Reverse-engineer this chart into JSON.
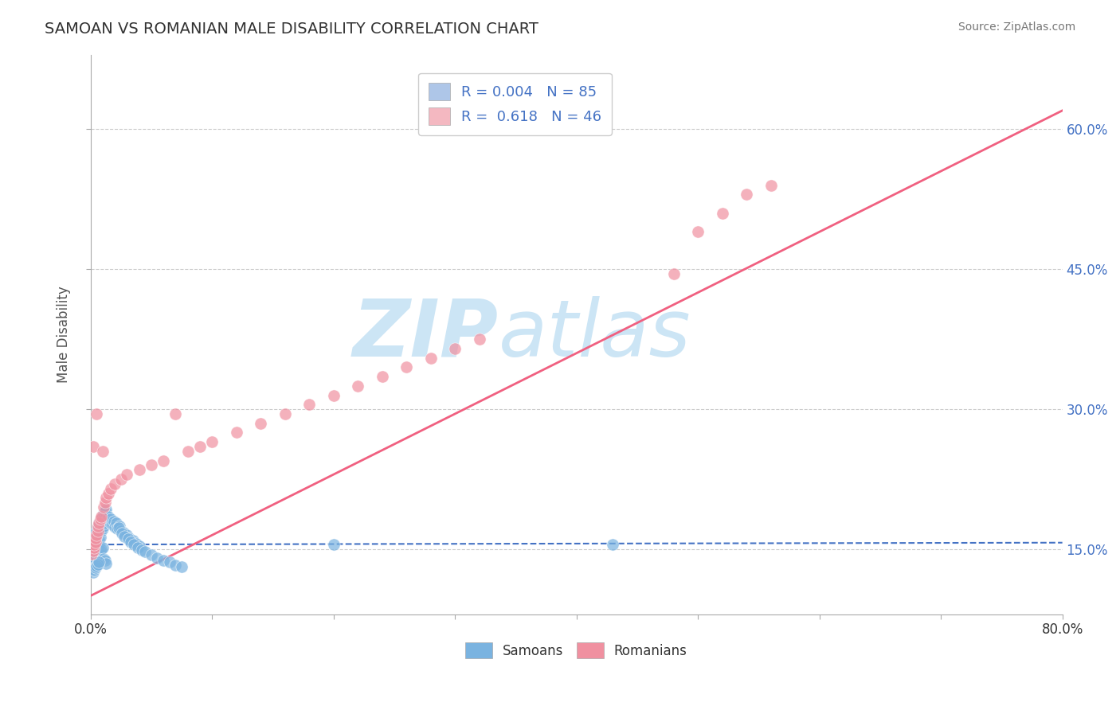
{
  "title": "SAMOAN VS ROMANIAN MALE DISABILITY CORRELATION CHART",
  "source_text": "Source: ZipAtlas.com",
  "ylabel": "Male Disability",
  "ytick_labels": [
    "15.0%",
    "30.0%",
    "45.0%",
    "60.0%"
  ],
  "ytick_values": [
    0.15,
    0.3,
    0.45,
    0.6
  ],
  "xlim": [
    0.0,
    0.8
  ],
  "ylim": [
    0.08,
    0.68
  ],
  "legend_entries": [
    {
      "label": "R = 0.004   N = 85",
      "color": "#aec6e8"
    },
    {
      "label": "R =  0.618   N = 46",
      "color": "#f4b8c1"
    }
  ],
  "watermark_zip": "ZIP",
  "watermark_atlas": "atlas",
  "watermark_color": "#cce5f5",
  "samoan_color": "#7ab3e0",
  "romanian_color": "#f090a0",
  "samoan_trend_color": "#4472c4",
  "romanian_trend_color": "#f06080",
  "background_color": "#ffffff",
  "grid_color": "#cccccc",
  "samoan_x": [
    0.001,
    0.002,
    0.002,
    0.003,
    0.003,
    0.003,
    0.004,
    0.004,
    0.004,
    0.005,
    0.005,
    0.005,
    0.005,
    0.006,
    0.006,
    0.006,
    0.006,
    0.007,
    0.007,
    0.007,
    0.007,
    0.008,
    0.008,
    0.008,
    0.009,
    0.009,
    0.01,
    0.01,
    0.011,
    0.011,
    0.012,
    0.012,
    0.013,
    0.014,
    0.015,
    0.016,
    0.017,
    0.018,
    0.019,
    0.02,
    0.021,
    0.022,
    0.024,
    0.025,
    0.027,
    0.03,
    0.032,
    0.035,
    0.038,
    0.04,
    0.002,
    0.003,
    0.004,
    0.005,
    0.006,
    0.007,
    0.008,
    0.009,
    0.01,
    0.011,
    0.012,
    0.013,
    0.002,
    0.003,
    0.004,
    0.005,
    0.006,
    0.007,
    0.023,
    0.026,
    0.028,
    0.031,
    0.033,
    0.036,
    0.039,
    0.042,
    0.045,
    0.05,
    0.055,
    0.06,
    0.065,
    0.07,
    0.075,
    0.2,
    0.43
  ],
  "samoan_y": [
    0.15,
    0.155,
    0.145,
    0.16,
    0.148,
    0.143,
    0.165,
    0.152,
    0.147,
    0.17,
    0.158,
    0.153,
    0.148,
    0.175,
    0.162,
    0.157,
    0.152,
    0.178,
    0.165,
    0.16,
    0.155,
    0.18,
    0.168,
    0.163,
    0.183,
    0.17,
    0.185,
    0.172,
    0.188,
    0.175,
    0.19,
    0.178,
    0.193,
    0.182,
    0.185,
    0.179,
    0.182,
    0.176,
    0.18,
    0.174,
    0.178,
    0.172,
    0.175,
    0.17,
    0.168,
    0.165,
    0.162,
    0.159,
    0.156,
    0.153,
    0.135,
    0.138,
    0.14,
    0.142,
    0.144,
    0.146,
    0.148,
    0.15,
    0.152,
    0.14,
    0.138,
    0.135,
    0.125,
    0.128,
    0.13,
    0.132,
    0.134,
    0.136,
    0.173,
    0.167,
    0.164,
    0.161,
    0.158,
    0.155,
    0.152,
    0.149,
    0.147,
    0.144,
    0.141,
    0.138,
    0.136,
    0.133,
    0.131,
    0.155,
    0.155
  ],
  "romanian_x": [
    0.001,
    0.002,
    0.002,
    0.003,
    0.003,
    0.004,
    0.004,
    0.005,
    0.005,
    0.006,
    0.006,
    0.007,
    0.008,
    0.009,
    0.01,
    0.011,
    0.012,
    0.013,
    0.015,
    0.017,
    0.02,
    0.025,
    0.03,
    0.04,
    0.05,
    0.06,
    0.07,
    0.08,
    0.09,
    0.1,
    0.12,
    0.14,
    0.16,
    0.18,
    0.2,
    0.22,
    0.24,
    0.26,
    0.28,
    0.3,
    0.32,
    0.48,
    0.5,
    0.52,
    0.54,
    0.56
  ],
  "romanian_y": [
    0.145,
    0.148,
    0.26,
    0.152,
    0.155,
    0.158,
    0.162,
    0.165,
    0.295,
    0.17,
    0.175,
    0.178,
    0.182,
    0.185,
    0.255,
    0.195,
    0.2,
    0.205,
    0.21,
    0.215,
    0.22,
    0.225,
    0.23,
    0.235,
    0.24,
    0.245,
    0.295,
    0.255,
    0.26,
    0.265,
    0.275,
    0.285,
    0.295,
    0.305,
    0.315,
    0.325,
    0.335,
    0.345,
    0.355,
    0.365,
    0.375,
    0.445,
    0.49,
    0.51,
    0.53,
    0.54
  ],
  "samoan_trend_x": [
    0.0,
    0.8
  ],
  "samoan_trend_y": [
    0.155,
    0.157
  ],
  "romanian_trend_x": [
    0.0,
    0.8
  ],
  "romanian_trend_y": [
    0.1,
    0.62
  ]
}
